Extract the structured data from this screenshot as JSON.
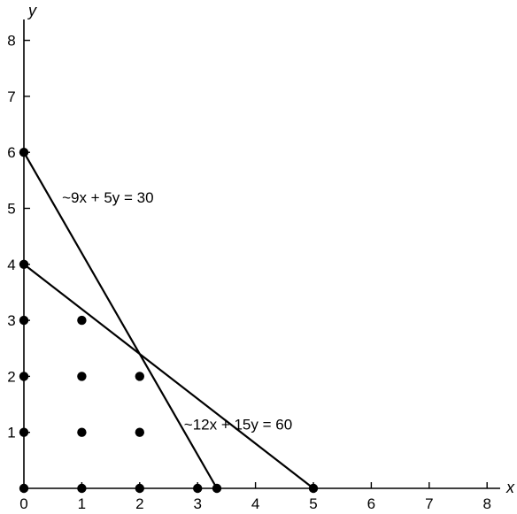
{
  "chart_data": {
    "type": "line",
    "xlabel": "x",
    "ylabel": "y",
    "xlim": [
      0,
      8
    ],
    "ylim": [
      0,
      8
    ],
    "x_ticks": [
      "0",
      "1",
      "2",
      "3",
      "4",
      "5",
      "6",
      "7",
      "8"
    ],
    "y_ticks": [
      "1",
      "2",
      "3",
      "4",
      "5",
      "6",
      "7",
      "8"
    ],
    "grid": false,
    "series": [
      {
        "name": "~9x + 5y = 30",
        "points": [
          [
            0,
            6
          ],
          [
            3.333,
            0
          ]
        ],
        "label_at": [
          1.45,
          5.1
        ]
      },
      {
        "name": "~12x + 15y = 60",
        "points": [
          [
            0,
            4
          ],
          [
            5,
            0
          ]
        ],
        "label_at": [
          3.7,
          1.05
        ]
      }
    ],
    "points": [
      [
        0,
        0
      ],
      [
        1,
        0
      ],
      [
        2,
        0
      ],
      [
        3,
        0
      ],
      [
        3.333,
        0
      ],
      [
        5,
        0
      ],
      [
        0,
        1
      ],
      [
        1,
        1
      ],
      [
        2,
        1
      ],
      [
        0,
        2
      ],
      [
        1,
        2
      ],
      [
        2,
        2
      ],
      [
        0,
        3
      ],
      [
        1,
        3
      ],
      [
        0,
        4
      ],
      [
        0,
        6
      ]
    ]
  }
}
